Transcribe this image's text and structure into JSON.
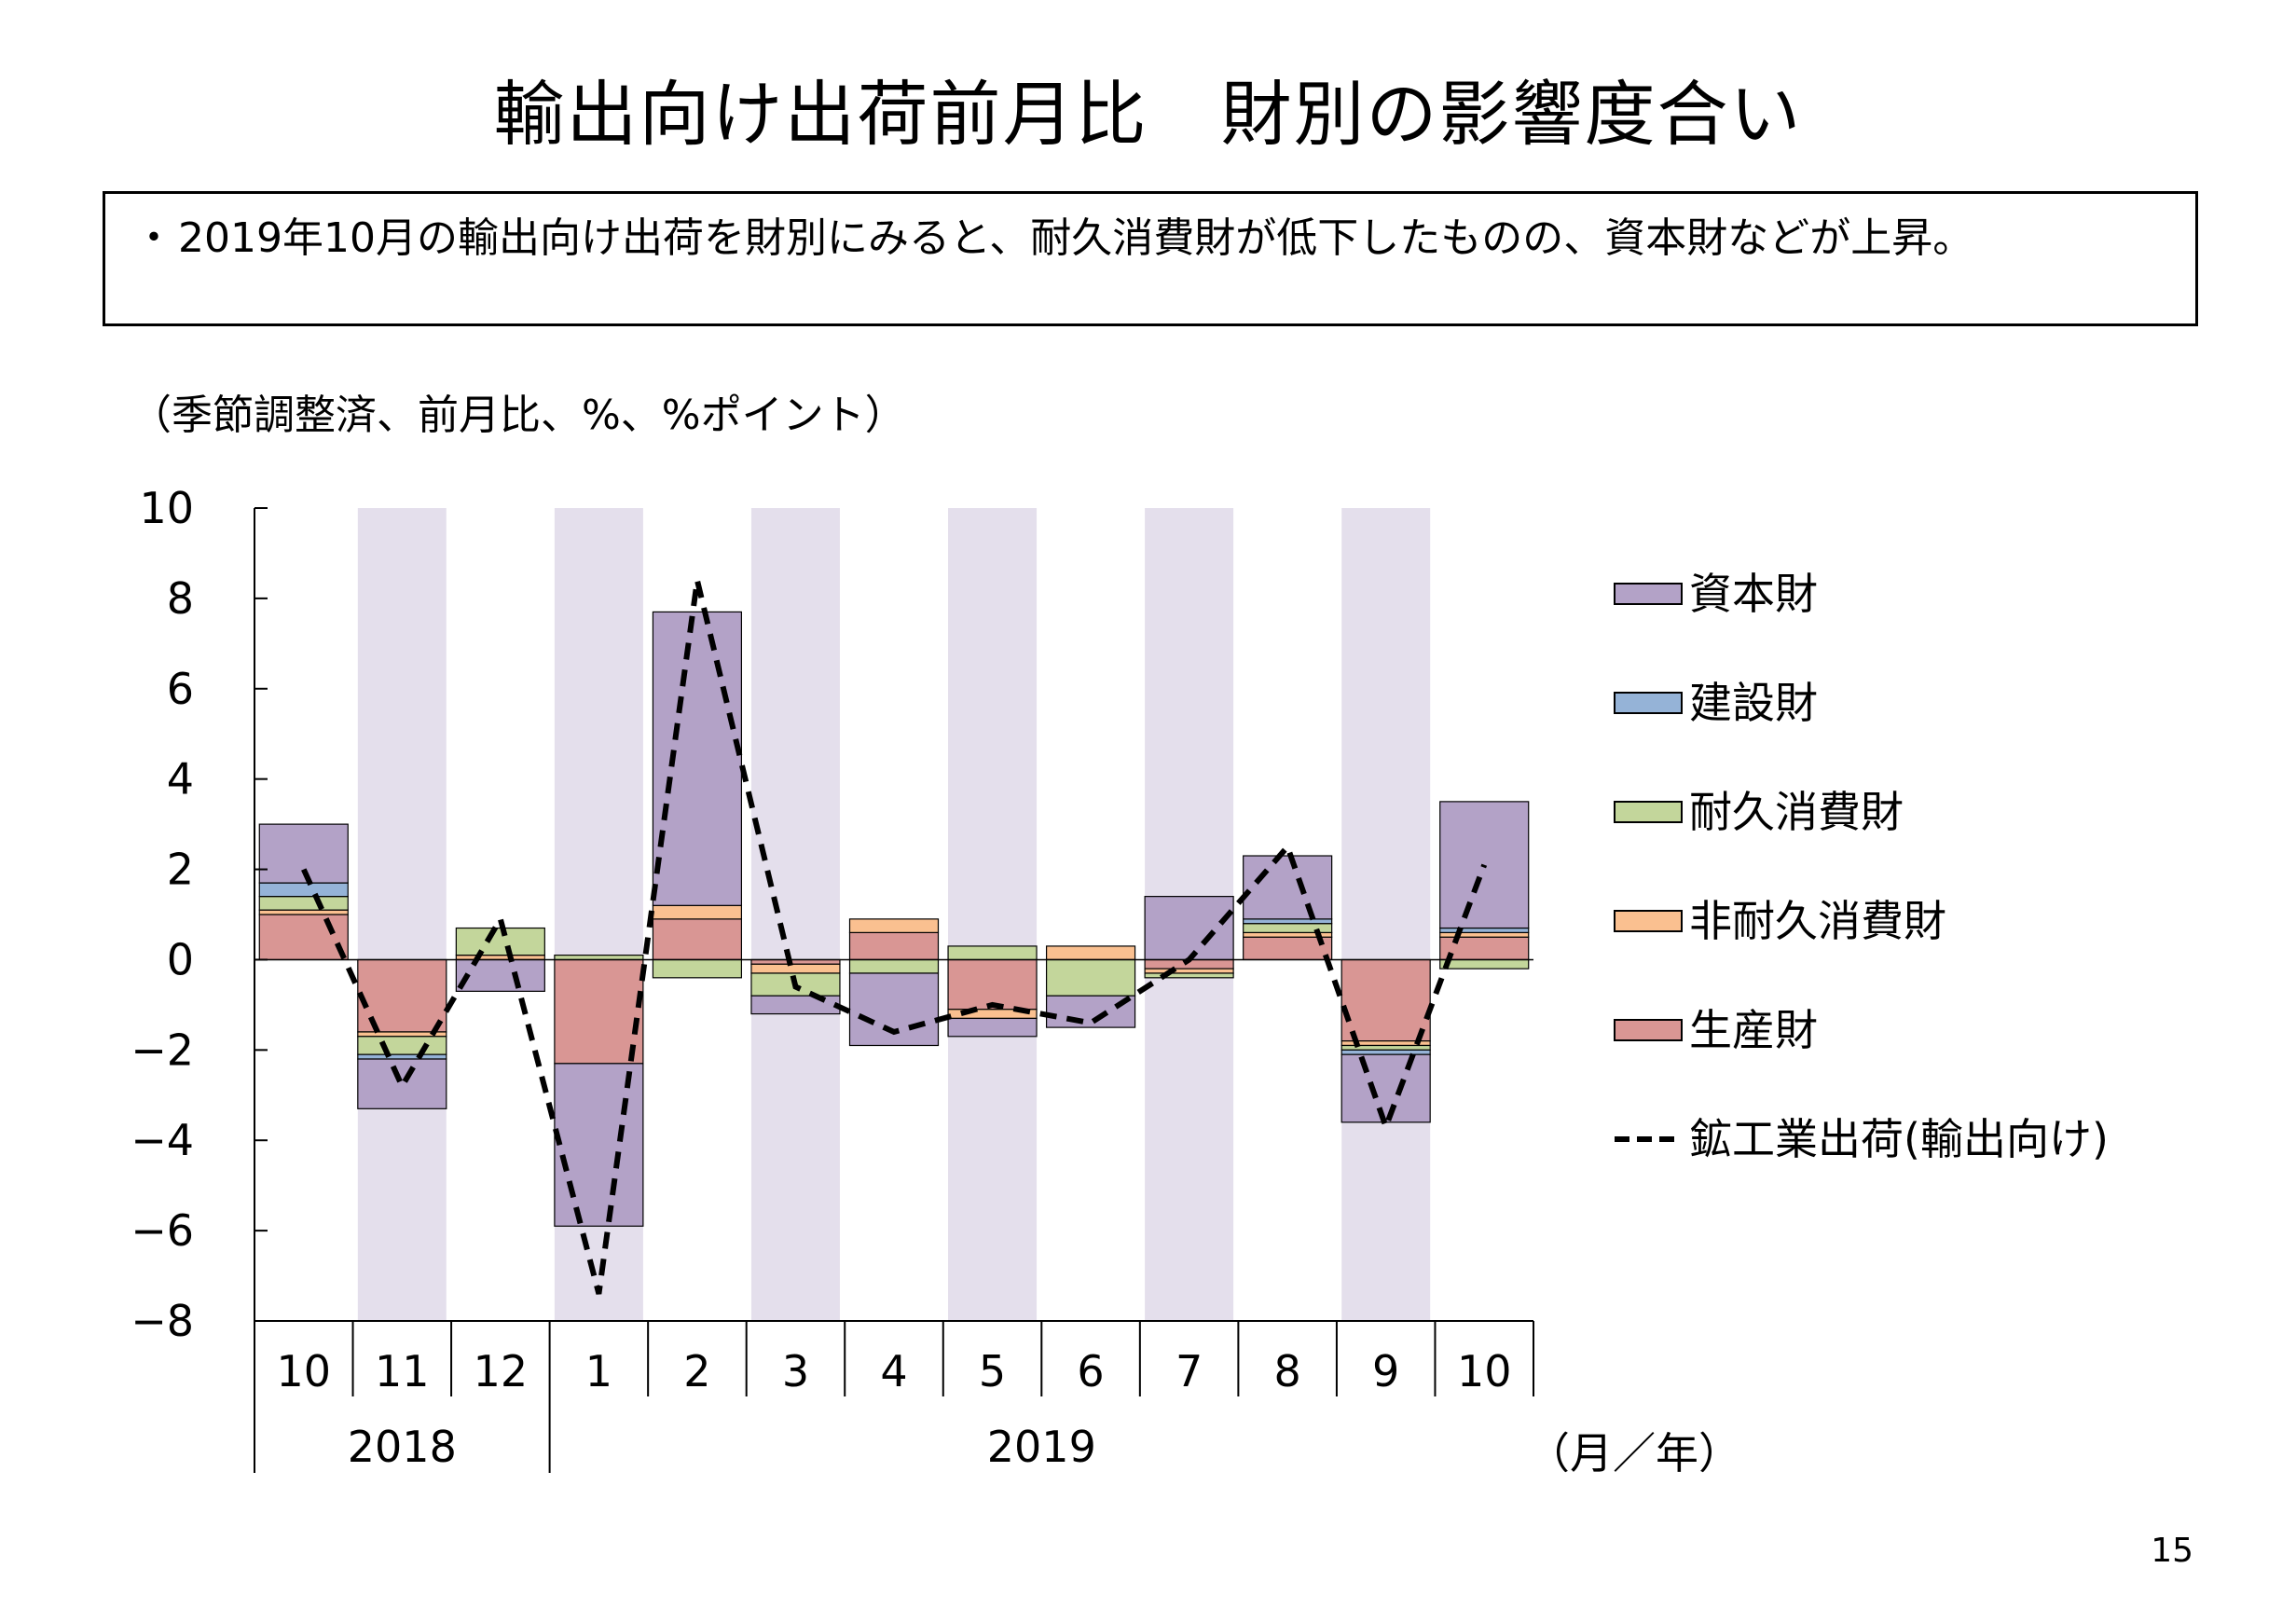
{
  "title": "輸出向け出荷前月比　財別の影響度合い",
  "summary": {
    "bullet": "・",
    "text": "2019年10月の輸出向け出荷を財別にみると、耐久消費財が低下したものの、資本財などが上昇。"
  },
  "unit_label": "（季節調整済、前月比、%、%ポイント）",
  "page_number": "15",
  "colors": {
    "資本財": "#b3a2c7",
    "建設財": "#95b3d7",
    "耐久消費財": "#c3d69b",
    "非耐久消費財": "#fac090",
    "生産財": "#d99694",
    "shade": "#e4dfec",
    "line": "#000000"
  },
  "chart_data": {
    "type": "bar",
    "stacked": true,
    "categories": [
      "10",
      "11",
      "12",
      "1",
      "2",
      "3",
      "4",
      "5",
      "6",
      "7",
      "8",
      "9",
      "10"
    ],
    "year_labels": [
      {
        "label": "2018",
        "start": 0,
        "end": 2
      },
      {
        "label": "2019",
        "start": 3,
        "end": 12
      }
    ],
    "x_axis_unit": "（月／年）",
    "ylim": [
      -8,
      10
    ],
    "yticks": [
      "10",
      "8",
      "6",
      "4",
      "2",
      "0",
      "−2",
      "−4",
      "−6",
      "−8"
    ],
    "ytick_values": [
      10,
      8,
      6,
      4,
      2,
      0,
      -2,
      -4,
      -6,
      -8
    ],
    "shaded_categories": [
      1,
      3,
      5,
      7,
      9,
      11
    ],
    "legend_position": "right",
    "series": [
      {
        "name": "生産財",
        "values": [
          1.0,
          -1.6,
          0.0,
          -2.3,
          0.9,
          -0.1,
          0.6,
          -1.1,
          0.0,
          -0.2,
          0.5,
          -1.8,
          0.5
        ]
      },
      {
        "name": "非耐久消費財",
        "values": [
          0.1,
          -0.1,
          0.1,
          0.0,
          0.3,
          -0.2,
          0.3,
          -0.2,
          0.3,
          -0.1,
          0.1,
          -0.1,
          0.1
        ]
      },
      {
        "name": "耐久消費財",
        "values": [
          0.3,
          -0.4,
          0.6,
          0.1,
          -0.4,
          -0.5,
          -0.3,
          0.3,
          -0.8,
          -0.1,
          0.2,
          -0.1,
          -0.2
        ]
      },
      {
        "name": "建設財",
        "values": [
          0.3,
          -0.1,
          0.0,
          0.0,
          0.0,
          0.0,
          0.0,
          0.0,
          0.0,
          0.0,
          0.1,
          -0.1,
          0.1
        ]
      },
      {
        "name": "資本財",
        "values": [
          1.3,
          -1.1,
          -0.7,
          -3.6,
          6.5,
          -0.4,
          -1.6,
          -0.4,
          -0.7,
          1.4,
          1.4,
          -1.5,
          2.8
        ]
      }
    ],
    "line": {
      "name": "鉱工業出荷(輸出向け)",
      "values": [
        2.0,
        -2.8,
        0.9,
        -7.4,
        8.4,
        -0.6,
        -1.6,
        -1.0,
        -1.4,
        0.0,
        2.5,
        -3.7,
        2.1
      ]
    },
    "legend_order": [
      "資本財",
      "建設財",
      "耐久消費財",
      "非耐久消費財",
      "生産財",
      "鉱工業出荷(輸出向け)"
    ]
  }
}
